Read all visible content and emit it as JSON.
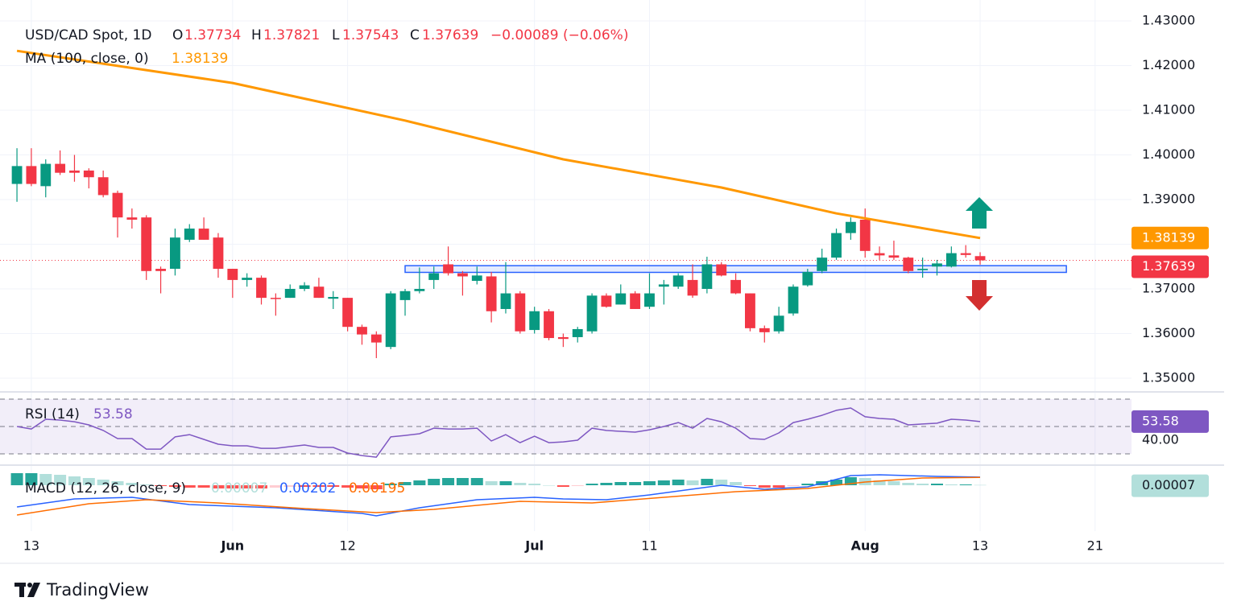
{
  "chart_data": {
    "type": "candlestick",
    "title": "USD/CAD Spot, 1D",
    "ohlc_labels": [
      "O",
      "H",
      "L",
      "C"
    ],
    "change_label": "−0.00089 (−0.06%)",
    "up_color": "#089981",
    "down_color": "#f23645",
    "open": [
      1.3935,
      1.3975,
      1.393,
      1.398,
      1.3965,
      1.3965,
      1.395,
      1.3915,
      1.386,
      1.386,
      1.3745,
      1.3745,
      1.381,
      1.3835,
      1.3815,
      1.3745,
      1.372,
      1.3725,
      1.368,
      1.368,
      1.37,
      1.3705,
      1.3678,
      1.368,
      1.3615,
      1.3598,
      1.357,
      1.3675,
      1.3695,
      1.372,
      1.3755,
      1.3735,
      1.3718,
      1.3728,
      1.3655,
      1.369,
      1.3608,
      1.365,
      1.3592,
      1.3592,
      1.3605,
      1.3685,
      1.3665,
      1.369,
      1.366,
      1.3705,
      1.3705,
      1.372,
      1.37,
      1.3755,
      1.372,
      1.369,
      1.3612,
      1.3605,
      1.3645,
      1.3708,
      1.374,
      1.377,
      1.3825,
      1.3855,
      1.378,
      1.3775,
      1.377,
      1.3742,
      1.375,
      1.375,
      1.378,
      1.37734
    ],
    "high": [
      1.4015,
      1.4015,
      1.399,
      1.401,
      1.4,
      1.397,
      1.3965,
      1.392,
      1.388,
      1.3865,
      1.375,
      1.3835,
      1.3845,
      1.386,
      1.3825,
      1.3745,
      1.3735,
      1.373,
      1.369,
      1.371,
      1.3715,
      1.3725,
      1.3695,
      1.368,
      1.362,
      1.3605,
      1.3695,
      1.37,
      1.3748,
      1.375,
      1.3795,
      1.374,
      1.375,
      1.3738,
      1.376,
      1.3695,
      1.366,
      1.3655,
      1.36,
      1.3615,
      1.369,
      1.369,
      1.371,
      1.3695,
      1.3735,
      1.372,
      1.3735,
      1.3755,
      1.3772,
      1.376,
      1.3735,
      1.369,
      1.3618,
      1.366,
      1.371,
      1.3745,
      1.379,
      1.3835,
      1.386,
      1.388,
      1.3795,
      1.3808,
      1.3772,
      1.377,
      1.3765,
      1.3795,
      1.3798,
      1.37821
    ],
    "low": [
      1.3895,
      1.393,
      1.3905,
      1.3955,
      1.394,
      1.3925,
      1.3905,
      1.3815,
      1.3835,
      1.372,
      1.369,
      1.373,
      1.3805,
      1.381,
      1.3725,
      1.368,
      1.3705,
      1.3665,
      1.364,
      1.368,
      1.3695,
      1.368,
      1.3655,
      1.3605,
      1.3575,
      1.3545,
      1.3565,
      1.364,
      1.369,
      1.37,
      1.373,
      1.3685,
      1.371,
      1.3625,
      1.3645,
      1.36,
      1.36,
      1.3585,
      1.357,
      1.358,
      1.36,
      1.3658,
      1.3665,
      1.3655,
      1.3655,
      1.3665,
      1.37,
      1.368,
      1.369,
      1.3728,
      1.3688,
      1.3605,
      1.358,
      1.36,
      1.364,
      1.3705,
      1.3735,
      1.3765,
      1.381,
      1.377,
      1.3765,
      1.3765,
      1.3735,
      1.3725,
      1.373,
      1.3748,
      1.377,
      1.37543
    ],
    "close": [
      1.3975,
      1.3935,
      1.398,
      1.396,
      1.396,
      1.395,
      1.391,
      1.386,
      1.3855,
      1.374,
      1.374,
      1.3815,
      1.3835,
      1.381,
      1.3745,
      1.372,
      1.3725,
      1.368,
      1.3678,
      1.37,
      1.3708,
      1.368,
      1.3682,
      1.3615,
      1.3598,
      1.358,
      1.369,
      1.3695,
      1.37,
      1.3735,
      1.3735,
      1.3728,
      1.373,
      1.365,
      1.369,
      1.3605,
      1.365,
      1.359,
      1.3588,
      1.361,
      1.3685,
      1.366,
      1.369,
      1.3655,
      1.369,
      1.371,
      1.373,
      1.3685,
      1.3755,
      1.373,
      1.369,
      1.3612,
      1.3603,
      1.364,
      1.3705,
      1.3738,
      1.377,
      1.3825,
      1.385,
      1.3785,
      1.3775,
      1.377,
      1.374,
      1.3745,
      1.3757,
      1.378,
      1.3776,
      1.37639
    ],
    "xlim": [
      -1.18,
      77.53
    ],
    "xticks": [
      {
        "value": 1,
        "label": "13"
      },
      {
        "value": 15,
        "label": "Jun"
      },
      {
        "value": 23,
        "label": "12"
      },
      {
        "value": 36,
        "label": "Jul"
      },
      {
        "value": 44,
        "label": "11"
      },
      {
        "value": 59,
        "label": "Aug"
      },
      {
        "value": 67,
        "label": "13"
      },
      {
        "value": 75,
        "label": "21"
      }
    ],
    "ylim": [
      1.34694,
      1.43468
    ],
    "yticks": [
      {
        "value": 1.43,
        "label": "1.43000"
      },
      {
        "value": 1.42,
        "label": "1.42000"
      },
      {
        "value": 1.41,
        "label": "1.41000"
      },
      {
        "value": 1.4,
        "label": "1.40000"
      },
      {
        "value": 1.39,
        "label": "1.39000"
      },
      {
        "value": 1.38,
        "label": "1.38000"
      },
      {
        "value": 1.37,
        "label": "1.37000"
      },
      {
        "value": 1.36,
        "label": "1.36000"
      },
      {
        "value": 1.35,
        "label": "1.35000"
      }
    ],
    "grid": true,
    "ma": {
      "name": "MA (100, close, 0)",
      "color": "#ff9800",
      "x": [
        0,
        15,
        27,
        38,
        49,
        57,
        67
      ],
      "values": [
        1.4233,
        1.4161,
        1.4077,
        1.399,
        1.3927,
        1.3869,
        1.38139
      ]
    },
    "support_zone": {
      "xlim": [
        27,
        73
      ],
      "ylim": [
        1.3737,
        1.3752
      ],
      "color": "#2962ff"
    },
    "rsi": {
      "name": "RSI (14)",
      "color": "#7e57c2",
      "ylim": [
        21.8,
        74.1
      ],
      "yticks": [
        {
          "value": 40,
          "label": "40.00"
        }
      ],
      "bands": [
        70,
        50,
        30
      ],
      "values": [
        50.0,
        48.2,
        55.3,
        54.7,
        53.5,
        51.2,
        47.1,
        41.2,
        41.2,
        33.5,
        33.5,
        42.4,
        44.1,
        40.6,
        37.1,
        35.9,
        35.9,
        34.1,
        34.1,
        35.3,
        36.5,
        34.7,
        34.7,
        30.6,
        28.8,
        27.6,
        42.4,
        43.5,
        44.7,
        48.8,
        48.2,
        48.2,
        48.8,
        39.4,
        44.1,
        38.2,
        42.9,
        38.2,
        38.8,
        40.0,
        48.8,
        47.1,
        46.5,
        45.9,
        47.6,
        50.0,
        52.9,
        48.8,
        55.9,
        53.5,
        48.8,
        41.2,
        40.6,
        45.3,
        52.9,
        55.3,
        58.2,
        61.8,
        63.5,
        57.1,
        55.9,
        55.3,
        51.2,
        51.8,
        52.4,
        55.3,
        54.7,
        53.58
      ]
    },
    "macd": {
      "name": "MACD (12, 26, close, 9)",
      "ylim": [
        -0.0114,
        0.0046
      ],
      "hist_colors": [
        "#26a69a",
        "#b2dfdb",
        "#ffcdd2",
        "#ff5252"
      ],
      "hist": [
        0.003,
        0.003,
        0.0028,
        0.0026,
        0.0022,
        0.0018,
        0.0014,
        0.001,
        0.0006,
        0.0002,
        -0.0002,
        -0.0004,
        -0.0006,
        -0.0006,
        -0.0008,
        -0.0008,
        -0.0008,
        -0.0008,
        -0.0006,
        -0.0004,
        -0.0004,
        -0.0004,
        -0.0004,
        -0.0006,
        -0.0008,
        -0.001,
        0.0004,
        0.0008,
        0.0012,
        0.0016,
        0.0018,
        0.0018,
        0.0018,
        0.001,
        0.001,
        0.0006,
        0.0004,
        0.0,
        -0.0004,
        -0.0002,
        0.0004,
        0.0006,
        0.0008,
        0.0008,
        0.001,
        0.0012,
        0.0014,
        0.0012,
        0.0016,
        0.0014,
        0.0008,
        -0.0002,
        -0.0006,
        -0.0006,
        -0.0002,
        0.0004,
        0.001,
        0.0014,
        0.002,
        0.0018,
        0.0012,
        0.001,
        0.0006,
        0.0004,
        0.0004,
        0.0002,
        0.0002,
        7e-05
      ],
      "macd_line": {
        "color": "#2962ff",
        "x": [
          0,
          4,
          8,
          12,
          18,
          24,
          25,
          28,
          32,
          36,
          38,
          41,
          44,
          49,
          52,
          55,
          58,
          60,
          64,
          67
        ],
        "values": [
          -0.0054,
          -0.0034,
          -0.003,
          -0.0048,
          -0.0056,
          -0.007,
          -0.0076,
          -0.0056,
          -0.0036,
          -0.003,
          -0.0034,
          -0.0036,
          -0.0024,
          0.0,
          -0.001,
          -0.0004,
          0.0024,
          0.0026,
          0.0022,
          0.00202
        ]
      },
      "signal_line": {
        "color": "#ff6d00",
        "x": [
          0,
          5,
          9,
          14,
          20,
          25,
          29,
          35,
          40,
          45,
          50,
          55,
          59,
          63,
          67
        ],
        "values": [
          -0.0074,
          -0.0046,
          -0.0036,
          -0.0044,
          -0.0058,
          -0.0068,
          -0.006,
          -0.004,
          -0.0044,
          -0.003,
          -0.0016,
          -0.0008,
          0.0008,
          0.0018,
          0.00195
        ]
      }
    },
    "brand": "TradingView"
  }
}
